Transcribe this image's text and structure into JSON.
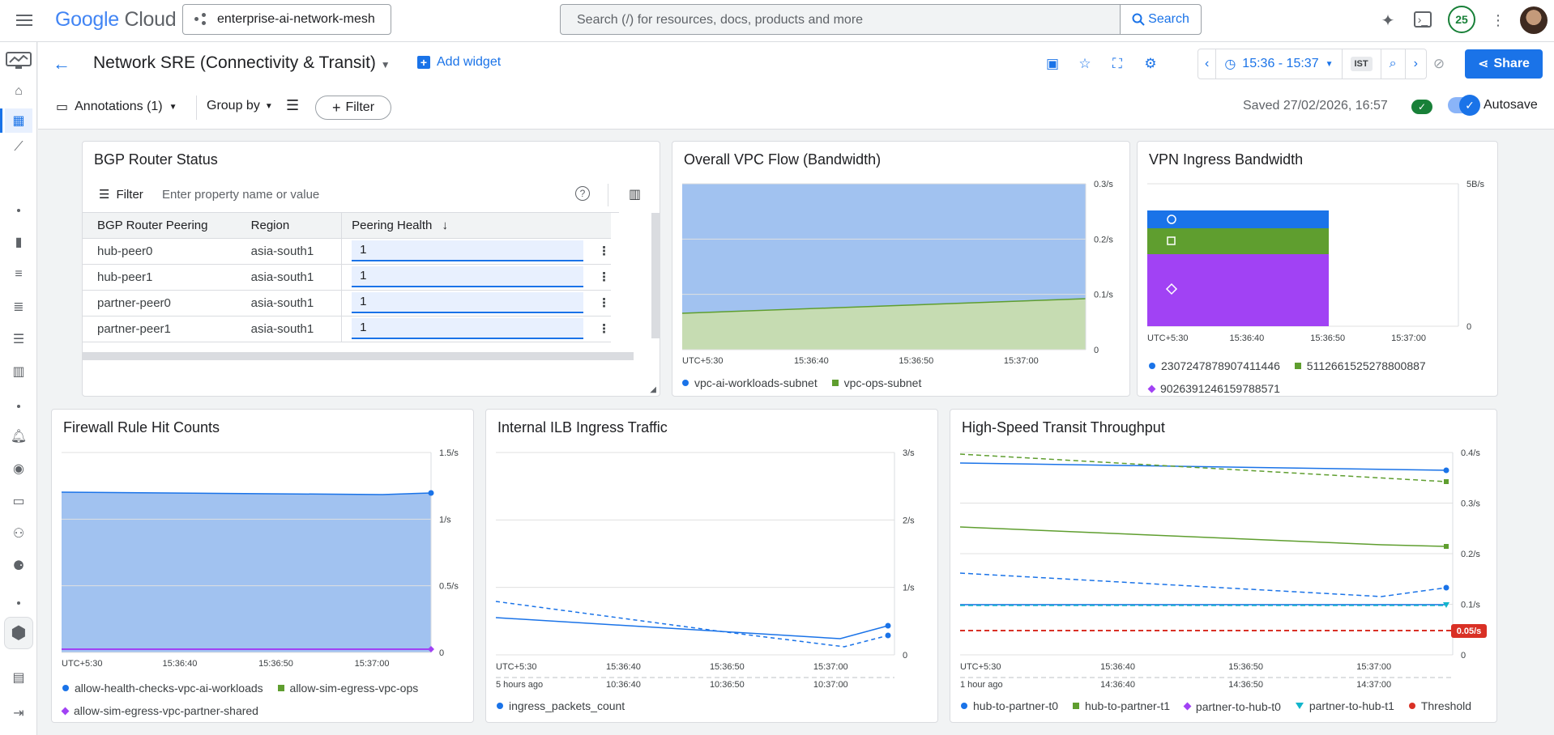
{
  "header": {
    "logo_google": "Google",
    "logo_cloud": "Cloud",
    "project": "enterprise-ai-network-mesh",
    "search_placeholder": "Search (/) for resources, docs, products and more",
    "search_button": "Search",
    "notifications_count": "25"
  },
  "toolbar": {
    "dashboard_title": "Network SRE (Connectivity & Transit)",
    "add_widget": "Add widget",
    "time_range": "15:36 - 15:37",
    "timezone": "IST",
    "share": "Share"
  },
  "filterbar": {
    "annotations": "Annotations (1)",
    "group_by": "Group by",
    "filter": "Filter",
    "saved": "Saved 27/02/2026, 16:57",
    "autosave": "Autosave"
  },
  "widgets": {
    "bgp": {
      "title": "BGP Router Status",
      "filter_label": "Filter",
      "filter_placeholder": "Enter property name or value",
      "columns": [
        "BGP Router Peering",
        "Region",
        "Peering Health"
      ],
      "rows": [
        {
          "peer": "hub-peer0",
          "region": "asia-south1",
          "health": "1"
        },
        {
          "peer": "hub-peer1",
          "region": "asia-south1",
          "health": "1"
        },
        {
          "peer": "partner-peer0",
          "region": "asia-south1",
          "health": "1"
        },
        {
          "peer": "partner-peer1",
          "region": "asia-south1",
          "health": "1"
        }
      ]
    },
    "vpc_flow": {
      "title": "Overall VPC Flow (Bandwidth)",
      "y_ticks": [
        "0.3/s",
        "0.2/s",
        "0.1/s",
        "0"
      ],
      "x_ticks": [
        "UTC+5:30",
        "15:36:40",
        "15:36:50",
        "15:37:00"
      ],
      "legend": [
        "vpc-ai-workloads-subnet",
        "vpc-ops-subnet"
      ]
    },
    "vpn": {
      "title": "VPN Ingress Bandwidth",
      "y_ticks": [
        "5B/s",
        "0"
      ],
      "x_ticks": [
        "UTC+5:30",
        "15:36:40",
        "15:36:50",
        "15:37:00"
      ],
      "legend": [
        "2307247878907411446",
        "5112661525278800887",
        "9026391246159788571"
      ]
    },
    "firewall": {
      "title": "Firewall Rule Hit Counts",
      "y_ticks": [
        "1.5/s",
        "1/s",
        "0.5/s",
        "0"
      ],
      "x_ticks": [
        "UTC+5:30",
        "15:36:40",
        "15:36:50",
        "15:37:00"
      ],
      "legend": [
        "allow-health-checks-vpc-ai-workloads",
        "allow-sim-egress-vpc-ops",
        "allow-sim-egress-vpc-partner-shared"
      ]
    },
    "ilb": {
      "title": "Internal ILB Ingress Traffic",
      "y_ticks": [
        "3/s",
        "2/s",
        "1/s",
        "0"
      ],
      "x_ticks": [
        "UTC+5:30",
        "15:36:40",
        "15:36:50",
        "15:37:00"
      ],
      "x_ticks2": [
        "5 hours ago",
        "10:36:40",
        "10:36:50",
        "10:37:00"
      ],
      "legend": [
        "ingress_packets_count"
      ]
    },
    "transit": {
      "title": "High-Speed Transit Throughput",
      "y_ticks": [
        "0.4/s",
        "0.3/s",
        "0.2/s",
        "0.1/s",
        "0"
      ],
      "threshold_label": "0.05/s",
      "x_ticks": [
        "UTC+5:30",
        "15:36:40",
        "15:36:50",
        "15:37:00"
      ],
      "x_ticks2": [
        "1 hour ago",
        "14:36:40",
        "14:36:50",
        "14:37:00"
      ],
      "legend": [
        "hub-to-partner-t0",
        "hub-to-partner-t1",
        "partner-to-hub-t0",
        "partner-to-hub-t1",
        "Threshold"
      ]
    }
  },
  "colors": {
    "blue": "#1a73e8",
    "green": "#5f9e2f",
    "purple": "#a142f4",
    "teal": "#12b5cb",
    "red": "#d93025"
  }
}
